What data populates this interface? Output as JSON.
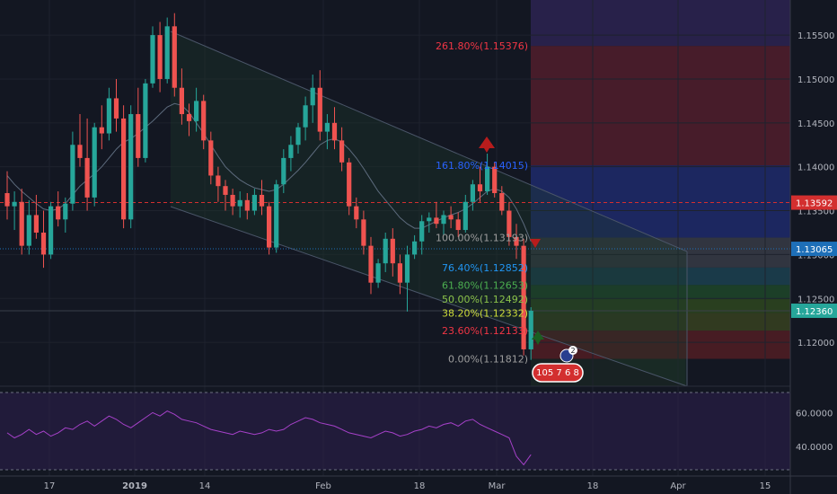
{
  "chart_data": [
    {
      "type": "candlestick",
      "title": "",
      "price_axis": {
        "ticks": [
          "1.15500",
          "1.15000",
          "1.14500",
          "1.14000",
          "1.13500",
          "1.13000",
          "1.12500",
          "1.12000"
        ],
        "range": [
          1.115,
          1.159
        ]
      },
      "time_axis": {
        "ticks": [
          "17",
          "2019",
          "14",
          "Feb",
          "18",
          "Mar",
          "18",
          "Apr",
          "15"
        ]
      },
      "price_tags": [
        {
          "label": "1.13592",
          "value": 1.13592,
          "color": "#d32f2f"
        },
        {
          "label": "1.13065",
          "value": 1.13065,
          "color": "#1e6fb8"
        },
        {
          "label": "1.12360",
          "value": 1.1236,
          "color": "#26a69a"
        }
      ],
      "fib_levels": [
        {
          "label": "261.80%(1.15376)",
          "value": 1.15376,
          "color": "#f23645"
        },
        {
          "label": "161.80%(1.14015)",
          "value": 1.14015,
          "color": "#2962ff"
        },
        {
          "label": "100.00%(1.13193)",
          "value": 1.13193,
          "color": "#9e9e9e"
        },
        {
          "label": "76.40%(1.12852)",
          "value": 1.12852,
          "color": "#2196f3"
        },
        {
          "label": "61.80%(1.12653)",
          "value": 1.12653,
          "color": "#4caf50"
        },
        {
          "label": "50.00%(1.12492)",
          "value": 1.12492,
          "color": "#8bc34a"
        },
        {
          "label": "38.20%(1.12332)",
          "value": 1.12332,
          "color": "#cddc39"
        },
        {
          "label": "23.60%(1.12133)",
          "value": 1.12133,
          "color": "#f23645"
        },
        {
          "label": "0.00%(1.11812)",
          "value": 1.11812,
          "color": "#9e9e9e"
        }
      ],
      "candles": [
        [
          1.137,
          1.1395,
          1.134,
          1.1355
        ],
        [
          1.1355,
          1.1372,
          1.1328,
          1.136
        ],
        [
          1.136,
          1.1375,
          1.13,
          1.131
        ],
        [
          1.131,
          1.1362,
          1.13,
          1.1345
        ],
        [
          1.1345,
          1.1368,
          1.1318,
          1.1325
        ],
        [
          1.1325,
          1.135,
          1.1285,
          1.13
        ],
        [
          1.13,
          1.136,
          1.1295,
          1.1355
        ],
        [
          1.1355,
          1.1372,
          1.1332,
          1.134
        ],
        [
          1.134,
          1.1365,
          1.1325,
          1.1358
        ],
        [
          1.1358,
          1.144,
          1.135,
          1.1425
        ],
        [
          1.1425,
          1.146,
          1.14,
          1.141
        ],
        [
          1.141,
          1.1455,
          1.135,
          1.1365
        ],
        [
          1.1365,
          1.145,
          1.1355,
          1.1445
        ],
        [
          1.1445,
          1.147,
          1.142,
          1.1438
        ],
        [
          1.1438,
          1.149,
          1.143,
          1.1478
        ],
        [
          1.1478,
          1.15,
          1.144,
          1.1455
        ],
        [
          1.1455,
          1.147,
          1.133,
          1.134
        ],
        [
          1.134,
          1.147,
          1.133,
          1.146
        ],
        [
          1.146,
          1.149,
          1.14,
          1.141
        ],
        [
          1.141,
          1.15,
          1.1405,
          1.1495
        ],
        [
          1.1495,
          1.156,
          1.149,
          1.155
        ],
        [
          1.155,
          1.1565,
          1.1485,
          1.15
        ],
        [
          1.15,
          1.157,
          1.1495,
          1.156
        ],
        [
          1.156,
          1.1575,
          1.148,
          1.149
        ],
        [
          1.149,
          1.1512,
          1.1448,
          1.146
        ],
        [
          1.146,
          1.1472,
          1.1435,
          1.1452
        ],
        [
          1.1452,
          1.149,
          1.144,
          1.1475
        ],
        [
          1.1475,
          1.1482,
          1.142,
          1.143
        ],
        [
          1.143,
          1.144,
          1.138,
          1.139
        ],
        [
          1.139,
          1.14,
          1.136,
          1.1378
        ],
        [
          1.1378,
          1.1385,
          1.135,
          1.1368
        ],
        [
          1.1368,
          1.1375,
          1.1345,
          1.1355
        ],
        [
          1.1355,
          1.1372,
          1.1342,
          1.1362
        ],
        [
          1.1362,
          1.137,
          1.134,
          1.135
        ],
        [
          1.135,
          1.1375,
          1.1345,
          1.1368
        ],
        [
          1.1368,
          1.1385,
          1.1345,
          1.1355
        ],
        [
          1.1355,
          1.136,
          1.13,
          1.1308
        ],
        [
          1.1308,
          1.1385,
          1.1302,
          1.138
        ],
        [
          1.138,
          1.142,
          1.137,
          1.141
        ],
        [
          1.141,
          1.1435,
          1.1395,
          1.1425
        ],
        [
          1.1425,
          1.145,
          1.1415,
          1.1445
        ],
        [
          1.1445,
          1.148,
          1.143,
          1.147
        ],
        [
          1.147,
          1.1505,
          1.145,
          1.149
        ],
        [
          1.149,
          1.151,
          1.143,
          1.144
        ],
        [
          1.144,
          1.146,
          1.142,
          1.145
        ],
        [
          1.145,
          1.1468,
          1.142,
          1.143
        ],
        [
          1.143,
          1.1445,
          1.1395,
          1.1405
        ],
        [
          1.1405,
          1.141,
          1.1345,
          1.1355
        ],
        [
          1.1355,
          1.1365,
          1.133,
          1.134
        ],
        [
          1.134,
          1.135,
          1.13,
          1.131
        ],
        [
          1.131,
          1.132,
          1.1255,
          1.1268
        ],
        [
          1.1268,
          1.1295,
          1.1262,
          1.129
        ],
        [
          1.129,
          1.1325,
          1.128,
          1.1318
        ],
        [
          1.1318,
          1.133,
          1.1275,
          1.129
        ],
        [
          1.129,
          1.13,
          1.1255,
          1.1268
        ],
        [
          1.1268,
          1.131,
          1.1235,
          1.13
        ],
        [
          1.13,
          1.1322,
          1.1295,
          1.1315
        ],
        [
          1.1315,
          1.1345,
          1.13,
          1.1338
        ],
        [
          1.1338,
          1.1348,
          1.1325,
          1.1342
        ],
        [
          1.1342,
          1.136,
          1.133,
          1.1335
        ],
        [
          1.1335,
          1.135,
          1.1322,
          1.1345
        ],
        [
          1.1345,
          1.1355,
          1.133,
          1.134
        ],
        [
          1.134,
          1.1348,
          1.132,
          1.1328
        ],
        [
          1.1328,
          1.1368,
          1.1325,
          1.136
        ],
        [
          1.136,
          1.1385,
          1.135,
          1.138
        ],
        [
          1.138,
          1.14,
          1.136,
          1.1372
        ],
        [
          1.1372,
          1.1415,
          1.1368,
          1.14
        ],
        [
          1.14,
          1.1405,
          1.1365,
          1.137
        ],
        [
          1.137,
          1.1378,
          1.1345,
          1.135
        ],
        [
          1.135,
          1.136,
          1.131,
          1.132
        ],
        [
          1.132,
          1.1335,
          1.1295,
          1.131
        ],
        [
          1.131,
          1.1318,
          1.1185,
          1.1192
        ],
        [
          1.1192,
          1.124,
          1.118,
          1.1236
        ]
      ],
      "ma_values": [
        1.139,
        1.138,
        1.1372,
        1.1365,
        1.1358,
        1.1352,
        1.135,
        1.1352,
        1.1358,
        1.1368,
        1.1378,
        1.1385,
        1.1392,
        1.14,
        1.141,
        1.142,
        1.1428,
        1.1432,
        1.1438,
        1.1445,
        1.1452,
        1.146,
        1.1468,
        1.1472,
        1.147,
        1.1462,
        1.145,
        1.1438,
        1.1425,
        1.1412,
        1.14,
        1.1392,
        1.1385,
        1.138,
        1.1376,
        1.1374,
        1.1372,
        1.1374,
        1.138,
        1.1388,
        1.1396,
        1.1405,
        1.1415,
        1.1425,
        1.143,
        1.1432,
        1.1428,
        1.142,
        1.141,
        1.1398,
        1.1385,
        1.1372,
        1.1362,
        1.1352,
        1.1342,
        1.1335,
        1.133,
        1.133,
        1.1334,
        1.1338,
        1.1342,
        1.1345,
        1.1348,
        1.1352,
        1.1358,
        1.1365,
        1.1372,
        1.1375,
        1.1372,
        1.1365,
        1.1352,
        1.1335,
        1.1315
      ]
    },
    {
      "type": "line",
      "title": "",
      "y_ticks": [
        "60.0000",
        "40.0000"
      ],
      "ylim": [
        26,
        72
      ],
      "values": [
        48,
        45,
        47,
        50,
        47,
        49,
        46,
        48,
        51,
        50,
        53,
        55,
        52,
        55,
        58,
        56,
        53,
        51,
        54,
        57,
        60,
        58,
        61,
        59,
        56,
        55,
        54,
        52,
        50,
        49,
        48,
        47,
        49,
        48,
        47,
        48,
        50,
        49,
        50,
        53,
        55,
        57,
        56,
        54,
        53,
        52,
        50,
        48,
        47,
        46,
        45,
        47,
        49,
        48,
        46,
        47,
        49,
        50,
        52,
        51,
        53,
        54,
        52,
        55,
        56,
        53,
        51,
        49,
        47,
        45,
        34,
        29,
        35
      ]
    }
  ],
  "markers": {
    "event_count_badge": "2",
    "event_bar_text": "105 7 6 8"
  }
}
